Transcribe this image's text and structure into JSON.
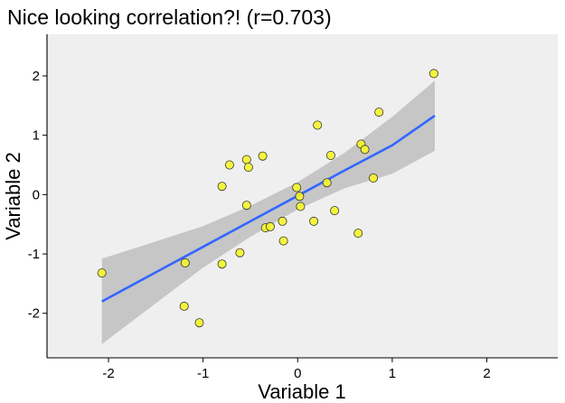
{
  "chart_data": {
    "type": "scatter",
    "title": "Nice looking correlation?! (r=0.703)",
    "xlabel": "Variable 1",
    "ylabel": "Variable 2",
    "xlim": [
      -2.65,
      2.75
    ],
    "ylim": [
      -2.75,
      2.7
    ],
    "xticks": [
      "-2",
      "-1",
      "0",
      "1",
      "2"
    ],
    "yticks": [
      "-2",
      "-1",
      "0",
      "1",
      "2"
    ],
    "grid": false,
    "background": "#efefef",
    "point_fill": "#f5f52a",
    "point_stroke": "#333333",
    "line_color": "#3366ff",
    "band_color": "#c6c6c6",
    "fit": {
      "x": [
        -2.07,
        -1.5,
        -1.0,
        -0.5,
        0.0,
        0.5,
        1.0,
        1.45
      ],
      "y": [
        -1.8,
        -1.31,
        -0.88,
        -0.45,
        -0.02,
        0.41,
        0.83,
        1.33
      ],
      "lower": [
        -2.52,
        -1.83,
        -1.23,
        -0.71,
        -0.25,
        0.11,
        0.35,
        0.74
      ],
      "upper": [
        -1.08,
        -0.79,
        -0.53,
        -0.19,
        0.21,
        0.71,
        1.31,
        1.92
      ]
    },
    "points": [
      {
        "x": -2.07,
        "y": -1.32
      },
      {
        "x": -1.19,
        "y": -1.15
      },
      {
        "x": -1.2,
        "y": -1.88
      },
      {
        "x": -1.04,
        "y": -2.16
      },
      {
        "x": -0.8,
        "y": -1.17
      },
      {
        "x": -0.8,
        "y": 0.14
      },
      {
        "x": -0.72,
        "y": 0.5
      },
      {
        "x": -0.61,
        "y": -0.98
      },
      {
        "x": -0.54,
        "y": 0.59
      },
      {
        "x": -0.52,
        "y": 0.46
      },
      {
        "x": -0.54,
        "y": -0.18
      },
      {
        "x": -0.37,
        "y": 0.65
      },
      {
        "x": -0.34,
        "y": -0.56
      },
      {
        "x": -0.29,
        "y": -0.54
      },
      {
        "x": -0.16,
        "y": -0.45
      },
      {
        "x": -0.15,
        "y": -0.78
      },
      {
        "x": -0.01,
        "y": 0.12
      },
      {
        "x": 0.02,
        "y": -0.03
      },
      {
        "x": 0.03,
        "y": -0.2
      },
      {
        "x": 0.17,
        "y": -0.45
      },
      {
        "x": 0.21,
        "y": 1.17
      },
      {
        "x": 0.31,
        "y": 0.2
      },
      {
        "x": 0.35,
        "y": 0.66
      },
      {
        "x": 0.39,
        "y": -0.27
      },
      {
        "x": 0.64,
        "y": -0.65
      },
      {
        "x": 0.67,
        "y": 0.85
      },
      {
        "x": 0.71,
        "y": 0.76
      },
      {
        "x": 0.8,
        "y": 0.28
      },
      {
        "x": 0.86,
        "y": 1.39
      },
      {
        "x": 1.44,
        "y": 2.04
      }
    ]
  }
}
